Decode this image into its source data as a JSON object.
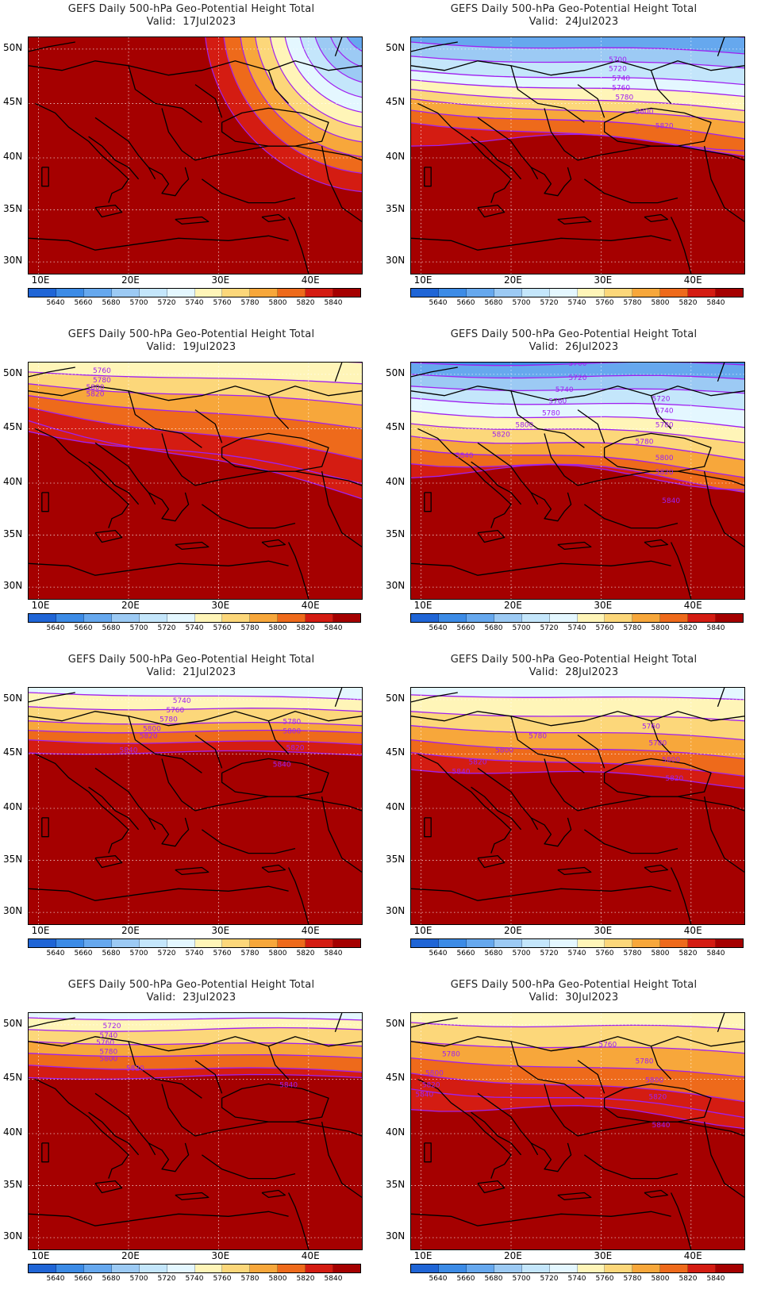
{
  "palette": {
    "levels": [
      5640,
      5660,
      5680,
      5700,
      5720,
      5740,
      5760,
      5780,
      5800,
      5820,
      5840
    ],
    "colors": [
      "#1f65d6",
      "#3c8be6",
      "#66a8ee",
      "#9ccaf4",
      "#c4e6fb",
      "#e4f7ff",
      "#fff5b8",
      "#fcd77a",
      "#f7a73b",
      "#ee6a1b",
      "#d41c12",
      "#a50000"
    ],
    "contour_color": "#a020f0"
  },
  "axes": {
    "lon_ticks": [
      "10E",
      "20E",
      "30E",
      "40E"
    ],
    "lat_ticks": [
      "50N",
      "45N",
      "40N",
      "35N",
      "30N"
    ]
  },
  "panels": [
    {
      "title": "GEFS Daily 500-hPa Geo-Potential Height Total",
      "valid_label": "Valid:",
      "date": "17Jul2023",
      "contour_labels": []
    },
    {
      "title": "GEFS Daily 500-hPa Geo-Potential Height Total",
      "valid_label": "Valid:",
      "date": "24Jul2023",
      "contour_labels": [
        "5700",
        "5720",
        "5740",
        "5760",
        "5780",
        "5800",
        "5820"
      ]
    },
    {
      "title": "GEFS Daily 500-hPa Geo-Potential Height Total",
      "valid_label": "Valid:",
      "date": "19Jul2023",
      "contour_labels": [
        "5760",
        "5780",
        "5800",
        "5820"
      ]
    },
    {
      "title": "GEFS Daily 500-hPa Geo-Potential Height Total",
      "valid_label": "Valid:",
      "date": "26Jul2023",
      "contour_labels": [
        "5700",
        "5720",
        "5740",
        "5760",
        "5780",
        "5800",
        "5820",
        "5840",
        "5720",
        "5740",
        "5780",
        "5780",
        "5800",
        "5820",
        "5840"
      ]
    },
    {
      "title": "GEFS Daily 500-hPa Geo-Potential Height Total",
      "valid_label": "Valid:",
      "date": "21Jul2023",
      "contour_labels": [
        "5740",
        "5760",
        "5780",
        "5800",
        "5820",
        "5840",
        "5780",
        "5800",
        "5820",
        "5840"
      ]
    },
    {
      "title": "GEFS Daily 500-hPa Geo-Potential Height Total",
      "valid_label": "Valid:",
      "date": "28Jul2023",
      "contour_labels": [
        "5780",
        "5800",
        "5820",
        "5840",
        "5760",
        "5780",
        "5800",
        "5820"
      ]
    },
    {
      "title": "GEFS Daily 500-hPa Geo-Potential Height Total",
      "valid_label": "Valid:",
      "date": "23Jul2023",
      "contour_labels": [
        "5720",
        "5740",
        "5760",
        "5780",
        "5800",
        "5820",
        "5840"
      ]
    },
    {
      "title": "GEFS Daily 500-hPa Geo-Potential Height Total",
      "valid_label": "Valid:",
      "date": "30Jul2023",
      "contour_labels": [
        "5780",
        "5800",
        "5820",
        "5840",
        "5760",
        "5780",
        "5800",
        "5820",
        "5840"
      ]
    }
  ]
}
